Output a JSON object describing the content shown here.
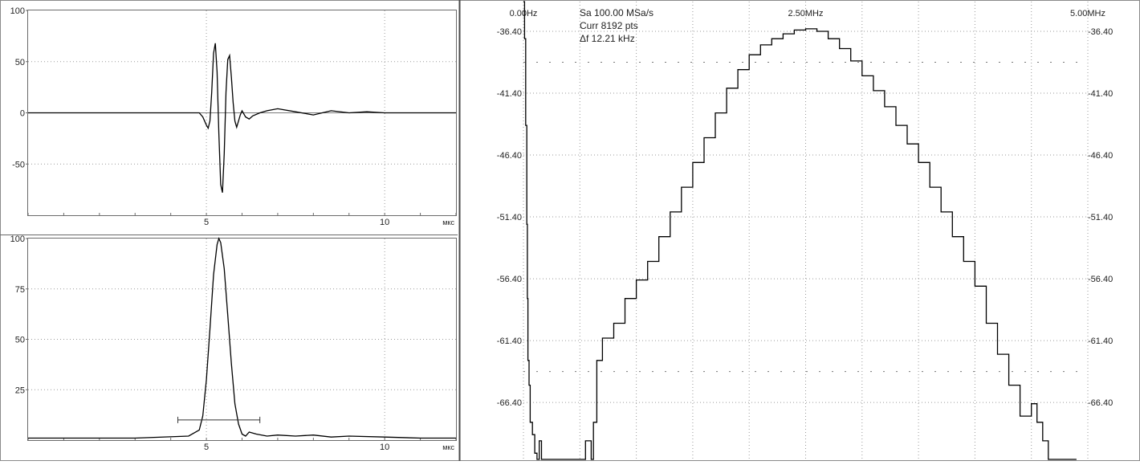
{
  "chart_data": [
    {
      "type": "line",
      "name_key": "top-left",
      "title": "",
      "xlabel": "",
      "ylabel": "",
      "x_unit": "мкс",
      "xlim": [
        0,
        12
      ],
      "ylim": [
        -100,
        100
      ],
      "y_ticks": [
        "100",
        "50",
        "0",
        "-50"
      ],
      "y_tick_values": [
        100,
        50,
        0,
        -50
      ],
      "x_ticks": [
        "5",
        "10"
      ],
      "x_tick_values": [
        5,
        10
      ],
      "grid": true,
      "series": [
        {
          "x": [
            0,
            4.8,
            4.9,
            5.0,
            5.05,
            5.1,
            5.15,
            5.2,
            5.25,
            5.3,
            5.35,
            5.4,
            5.45,
            5.5,
            5.55,
            5.6,
            5.65,
            5.7,
            5.75,
            5.8,
            5.85,
            5.9,
            5.95,
            6.0,
            6.1,
            6.2,
            6.3,
            6.5,
            6.7,
            7.0,
            7.5,
            8.0,
            8.5,
            9.0,
            9.5,
            10.0,
            11.0,
            12.0
          ],
          "y": [
            0,
            0,
            -4,
            -12,
            -15,
            -8,
            20,
            58,
            68,
            40,
            -20,
            -70,
            -78,
            -40,
            20,
            52,
            56,
            35,
            10,
            -8,
            -14,
            -8,
            -2,
            2,
            -4,
            -6,
            -3,
            0,
            2,
            4,
            1,
            -2,
            2,
            0,
            1,
            0,
            0,
            0
          ]
        }
      ]
    },
    {
      "type": "line",
      "name_key": "bottom-left",
      "title": "",
      "xlabel": "",
      "ylabel": "",
      "x_unit": "мкс",
      "xlim": [
        0,
        12
      ],
      "ylim": [
        0,
        100
      ],
      "y_ticks": [
        "100",
        "75",
        "50",
        "25"
      ],
      "y_tick_values": [
        100,
        75,
        50,
        25
      ],
      "x_ticks": [
        "5",
        "10"
      ],
      "x_tick_values": [
        5,
        10
      ],
      "grid": true,
      "marker_range": [
        4.2,
        6.5
      ],
      "marker_level": 10,
      "series": [
        {
          "x": [
            0,
            3,
            4.5,
            4.8,
            4.9,
            5.0,
            5.1,
            5.2,
            5.3,
            5.35,
            5.4,
            5.5,
            5.6,
            5.7,
            5.8,
            5.9,
            6.0,
            6.1,
            6.2,
            6.4,
            6.7,
            7.0,
            7.5,
            8.0,
            8.5,
            9.0,
            10.0,
            11.0,
            12.0
          ],
          "y": [
            1,
            1,
            2,
            5,
            12,
            30,
            55,
            82,
            97,
            100,
            98,
            85,
            62,
            38,
            18,
            8,
            3,
            2,
            4,
            3,
            2,
            2.5,
            2,
            2.5,
            1.5,
            2,
            1.5,
            1,
            1
          ]
        }
      ]
    },
    {
      "type": "line",
      "name_key": "spectrum",
      "title": "",
      "xlabel": "",
      "ylabel": "",
      "x_ticks": [
        "0.00Hz",
        "2.50MHz",
        "5.00MHz"
      ],
      "x_tick_values": [
        0,
        2.5,
        5.0
      ],
      "xlim": [
        0,
        5.0
      ],
      "ylim": [
        -71,
        -34
      ],
      "y_ticks": [
        "-36.40",
        "-41.40",
        "-46.40",
        "-51.40",
        "-56.40",
        "-61.40",
        "-66.40"
      ],
      "y_tick_values": [
        -36.4,
        -41.4,
        -46.4,
        -51.4,
        -56.4,
        -61.4,
        -66.4
      ],
      "grid": true,
      "series": [
        {
          "x": [
            0.0,
            0.01,
            0.02,
            0.03,
            0.035,
            0.04,
            0.05,
            0.06,
            0.08,
            0.1,
            0.12,
            0.14,
            0.16,
            0.18,
            0.2,
            0.22,
            0.25,
            0.3,
            0.35,
            0.4,
            0.45,
            0.5,
            0.55,
            0.6,
            0.62,
            0.65,
            0.7,
            0.8,
            0.9,
            1.0,
            1.1,
            1.2,
            1.3,
            1.4,
            1.5,
            1.6,
            1.7,
            1.8,
            1.9,
            2.0,
            2.1,
            2.2,
            2.3,
            2.4,
            2.5,
            2.6,
            2.7,
            2.8,
            2.9,
            3.0,
            3.1,
            3.2,
            3.3,
            3.4,
            3.5,
            3.6,
            3.7,
            3.8,
            3.9,
            4.0,
            4.1,
            4.2,
            4.3,
            4.4,
            4.5,
            4.55,
            4.6,
            4.65,
            4.7,
            4.75,
            4.8,
            4.85,
            4.9
          ],
          "y": [
            -34,
            -37,
            -44,
            -52,
            -58,
            -63,
            -65,
            -68,
            -69,
            -70.5,
            -71,
            -69.5,
            -71,
            -71,
            -71,
            -71,
            -71,
            -71,
            -71,
            -71,
            -71,
            -71,
            -69.5,
            -71,
            -68,
            -63,
            -61.2,
            -60,
            -58,
            -56.5,
            -55,
            -53,
            -51,
            -49,
            -47,
            -45,
            -43,
            -41,
            -39.5,
            -38.3,
            -37.5,
            -37,
            -36.6,
            -36.3,
            -36.2,
            -36.4,
            -37,
            -37.8,
            -38.8,
            -40,
            -41.2,
            -42.5,
            -44,
            -45.5,
            -47,
            -49,
            -51,
            -53,
            -55,
            -57,
            -60,
            -62.5,
            -65,
            -67.5,
            -66.5,
            -68,
            -69.5,
            -71,
            -71,
            -71,
            -71,
            -71,
            -71
          ]
        }
      ]
    }
  ],
  "info": {
    "sample_rate": "Sa 100.00 MSa/s",
    "points": "Curr 8192 pts",
    "delta_f": "Δf 12.21 kHz"
  }
}
